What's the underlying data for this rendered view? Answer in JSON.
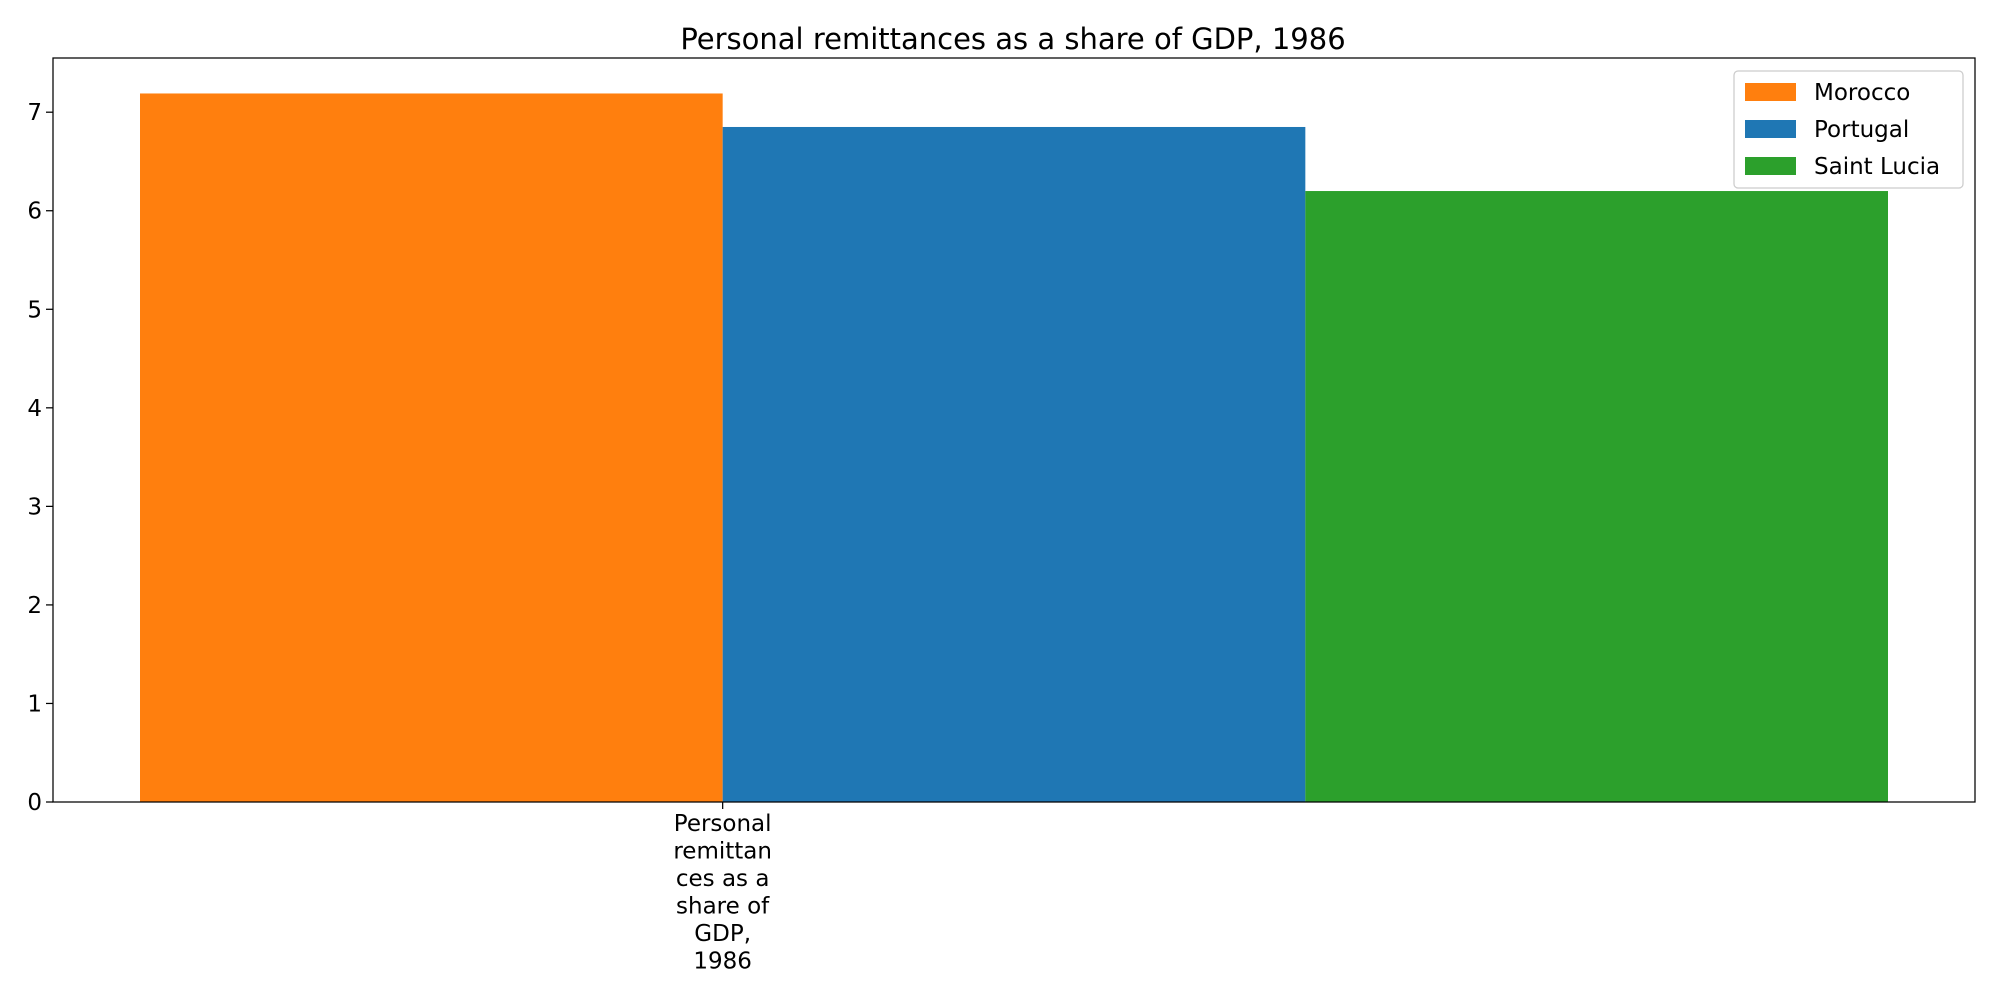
{
  "chart_data": {
    "type": "bar",
    "title": "Personal remittances as a share of GDP, 1986",
    "categories": [
      "Personal remittances as a share of GDP, 1986"
    ],
    "category_label_lines": [
      "Personal",
      "remittan",
      "ces as a",
      "share of",
      "GDP,",
      "1986"
    ],
    "series": [
      {
        "name": "Morocco",
        "values": [
          7.19
        ],
        "color": "#ff7f0e"
      },
      {
        "name": "Portugal",
        "values": [
          6.85
        ],
        "color": "#1f77b4"
      },
      {
        "name": "Saint Lucia",
        "values": [
          6.2
        ],
        "color": "#2ca02c"
      }
    ],
    "xlabel": "",
    "ylabel": "",
    "ylim": [
      0,
      7.55
    ],
    "yticks": [
      0,
      1,
      2,
      3,
      4,
      5,
      6,
      7
    ],
    "grid": false,
    "legend_position": "top-right"
  }
}
